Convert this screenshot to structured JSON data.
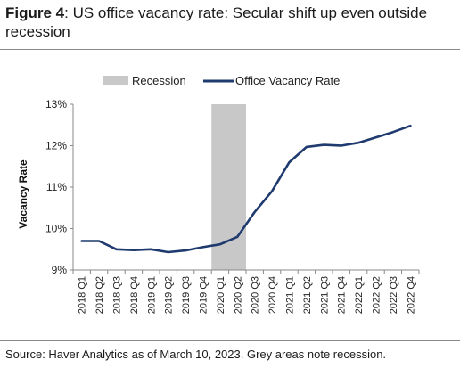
{
  "figure": {
    "number": "Figure 4",
    "title": ": US office vacancy rate: Secular shift up even outside recession"
  },
  "source": "Source: Haver Analytics as of March 10, 2023. Grey areas note recession.",
  "chart_data": {
    "type": "line",
    "title": "",
    "xlabel": "",
    "ylabel": "Vacancy Rate",
    "ylim": [
      9,
      13
    ],
    "yticks": [
      "9%",
      "10%",
      "11%",
      "12%",
      "13%"
    ],
    "yticks_values": [
      9,
      10,
      11,
      12,
      13
    ],
    "grid": false,
    "legend_position": "top",
    "categories": [
      "2018 Q1",
      "2018 Q2",
      "2018 Q3",
      "2018 Q4",
      "2019 Q1",
      "2019 Q2",
      "2019 Q3",
      "2019 Q4",
      "2020 Q1",
      "2020 Q2",
      "2020 Q3",
      "2020 Q4",
      "2021 Q1",
      "2021 Q2",
      "2021 Q3",
      "2021 Q4",
      "2022 Q1",
      "2022 Q2",
      "2022 Q3",
      "2022 Q4"
    ],
    "recession": {
      "name": "Recession",
      "from": "2020 Q1",
      "to": "2020 Q2",
      "color": "#c8c8c8"
    },
    "series": [
      {
        "name": "Office Vacancy Rate",
        "color": "#1f3a6e",
        "values": [
          9.7,
          9.7,
          9.5,
          9.48,
          9.5,
          9.43,
          9.47,
          9.55,
          9.62,
          9.8,
          10.4,
          10.9,
          11.6,
          11.97,
          12.02,
          12.0,
          12.07,
          12.2,
          12.33,
          12.48
        ]
      }
    ]
  }
}
